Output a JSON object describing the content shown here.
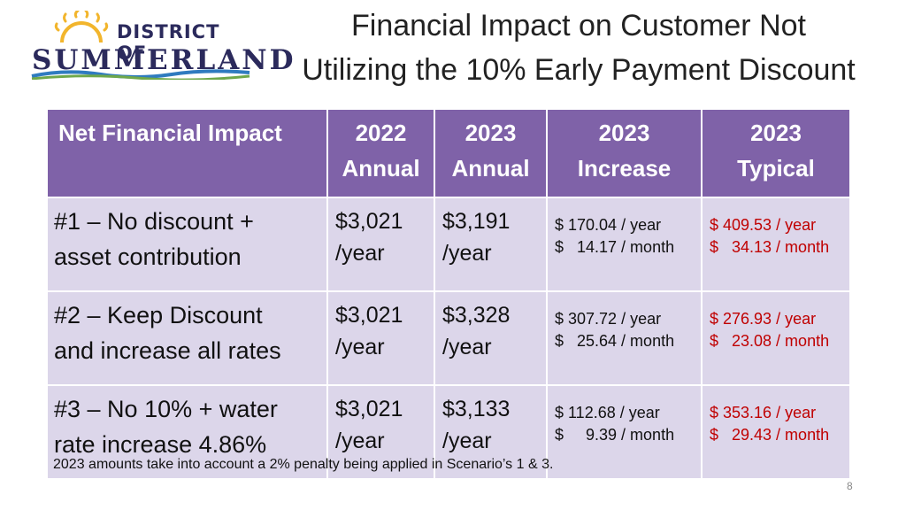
{
  "logo": {
    "line1": "DISTRICT OF",
    "line2": "SUMMERLAND"
  },
  "title": {
    "line1": "Financial Impact on Customer Not",
    "line2": "Utilizing the 10% Early Payment Discount"
  },
  "table": {
    "headers": [
      {
        "line1": "Net Financial Impact",
        "line2": ""
      },
      {
        "line1": "2022",
        "line2": "Annual"
      },
      {
        "line1": "2023",
        "line2": "Annual"
      },
      {
        "line1": "2023",
        "line2": "Increase"
      },
      {
        "line1": "2023",
        "line2": "Typical"
      }
    ],
    "rows": [
      {
        "scenario_line1": "#1 – No discount +",
        "scenario_line2": "asset contribution",
        "annual_2022": {
          "amount": "$3,021",
          "unit": "/year"
        },
        "annual_2023": {
          "amount": "$3,191",
          "unit": "/year"
        },
        "increase": {
          "year": "$ 170.04 / year",
          "month": "$   14.17 / month"
        },
        "typical": {
          "year": "$ 409.53 / year",
          "month": "$   34.13 / month"
        }
      },
      {
        "scenario_line1": "#2 – Keep Discount",
        "scenario_line2": "and increase all rates",
        "annual_2022": {
          "amount": "$3,021",
          "unit": "/year"
        },
        "annual_2023": {
          "amount": "$3,328",
          "unit": "/year"
        },
        "increase": {
          "year": "$ 307.72 / year",
          "month": "$   25.64 / month"
        },
        "typical": {
          "year": "$ 276.93 / year",
          "month": "$   23.08 / month"
        }
      },
      {
        "scenario_line1": "#3 – No 10% + water",
        "scenario_line2": "rate increase 4.86%",
        "annual_2022": {
          "amount": "$3,021",
          "unit": "/year"
        },
        "annual_2023": {
          "amount": "$3,133",
          "unit": "/year"
        },
        "increase": {
          "year": "$ 112.68 / year",
          "month": "$     9.39 / month"
        },
        "typical": {
          "year": "$ 353.16 / year",
          "month": "$   29.43 / month"
        }
      }
    ]
  },
  "footnote": "2023 amounts take into account a 2% penalty being applied in Scenario’s 1 & 3.",
  "page_number": "8",
  "colors": {
    "header_bg": "#7f62a8",
    "cell_bg": "#dcd6ea",
    "typical_text": "#c00000",
    "logo_text": "#2b2a5c",
    "logo_sun": "#f2b52c",
    "logo_wave_blue": "#2f7bbf",
    "logo_wave_green": "#6fa84a"
  }
}
